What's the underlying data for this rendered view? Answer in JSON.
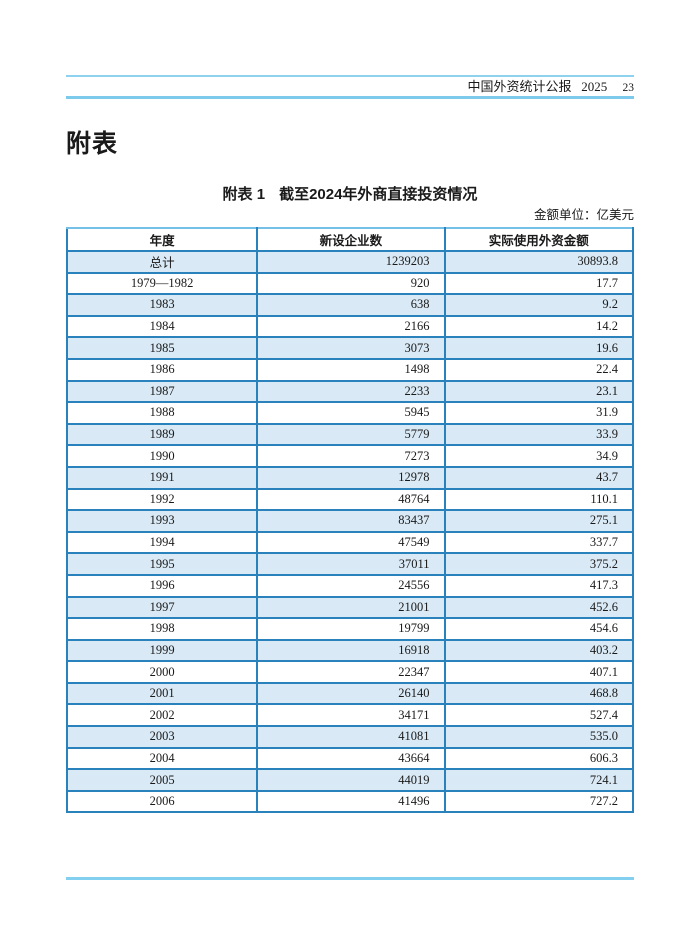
{
  "running_head": {
    "publication": "中国外资统计公报",
    "year": "2025",
    "page_number": "23"
  },
  "section_heading": "附表",
  "table": {
    "title_label": "附表 1",
    "title_text": "截至2024年外商直接投资情况",
    "unit_note": "金额单位：亿美元",
    "columns": [
      "年度",
      "新设企业数",
      "实际使用外资金额"
    ],
    "rows": [
      {
        "year": "总计",
        "new_enterprises": "1239203",
        "amount": "30893.8"
      },
      {
        "year": "1979—1982",
        "new_enterprises": "920",
        "amount": "17.7"
      },
      {
        "year": "1983",
        "new_enterprises": "638",
        "amount": "9.2"
      },
      {
        "year": "1984",
        "new_enterprises": "2166",
        "amount": "14.2"
      },
      {
        "year": "1985",
        "new_enterprises": "3073",
        "amount": "19.6"
      },
      {
        "year": "1986",
        "new_enterprises": "1498",
        "amount": "22.4"
      },
      {
        "year": "1987",
        "new_enterprises": "2233",
        "amount": "23.1"
      },
      {
        "year": "1988",
        "new_enterprises": "5945",
        "amount": "31.9"
      },
      {
        "year": "1989",
        "new_enterprises": "5779",
        "amount": "33.9"
      },
      {
        "year": "1990",
        "new_enterprises": "7273",
        "amount": "34.9"
      },
      {
        "year": "1991",
        "new_enterprises": "12978",
        "amount": "43.7"
      },
      {
        "year": "1992",
        "new_enterprises": "48764",
        "amount": "110.1"
      },
      {
        "year": "1993",
        "new_enterprises": "83437",
        "amount": "275.1"
      },
      {
        "year": "1994",
        "new_enterprises": "47549",
        "amount": "337.7"
      },
      {
        "year": "1995",
        "new_enterprises": "37011",
        "amount": "375.2"
      },
      {
        "year": "1996",
        "new_enterprises": "24556",
        "amount": "417.3"
      },
      {
        "year": "1997",
        "new_enterprises": "21001",
        "amount": "452.6"
      },
      {
        "year": "1998",
        "new_enterprises": "19799",
        "amount": "454.6"
      },
      {
        "year": "1999",
        "new_enterprises": "16918",
        "amount": "403.2"
      },
      {
        "year": "2000",
        "new_enterprises": "22347",
        "amount": "407.1"
      },
      {
        "year": "2001",
        "new_enterprises": "26140",
        "amount": "468.8"
      },
      {
        "year": "2002",
        "new_enterprises": "34171",
        "amount": "527.4"
      },
      {
        "year": "2003",
        "new_enterprises": "41081",
        "amount": "535.0"
      },
      {
        "year": "2004",
        "new_enterprises": "43664",
        "amount": "606.3"
      },
      {
        "year": "2005",
        "new_enterprises": "44019",
        "amount": "724.1"
      },
      {
        "year": "2006",
        "new_enterprises": "41496",
        "amount": "727.2"
      }
    ]
  },
  "colors": {
    "rule_cyan": "#7ccbec",
    "table_border_blue": "#2a82bd",
    "table_top_border": "#74c0e6",
    "row_band_blue": "#d9e9f5",
    "text": "#1a1a1a"
  }
}
